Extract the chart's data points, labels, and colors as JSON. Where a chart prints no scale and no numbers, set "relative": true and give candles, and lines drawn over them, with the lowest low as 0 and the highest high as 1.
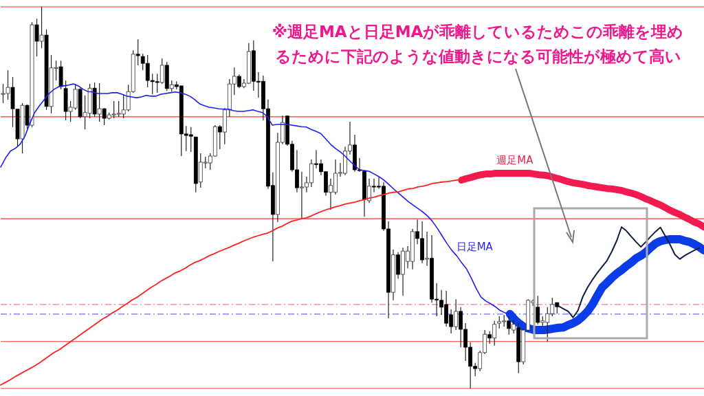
{
  "chart_data": {
    "type": "candlestick",
    "relative": true,
    "tick_labels": false,
    "categories": [
      null,
      null,
      null,
      null,
      null,
      null,
      null,
      null,
      null,
      null,
      null,
      null,
      null,
      null,
      null,
      null,
      null,
      null,
      null,
      null,
      null,
      null,
      null,
      null,
      null,
      null,
      null,
      null,
      null,
      null,
      null,
      null,
      null,
      null,
      null,
      null,
      null,
      null,
      null,
      null,
      null,
      null,
      null,
      null,
      null,
      null,
      null,
      null,
      null,
      null,
      null,
      null,
      null,
      null,
      null,
      null,
      null,
      null,
      null,
      null,
      null,
      null,
      null,
      null,
      null,
      null,
      null,
      null,
      null,
      null,
      null,
      null,
      null,
      null,
      null,
      null,
      null,
      null,
      null,
      null,
      null,
      null,
      null,
      null,
      null,
      null,
      null,
      null,
      null,
      null,
      null,
      null,
      null,
      null,
      null,
      null,
      null,
      null,
      null,
      null,
      null,
      null,
      null,
      null,
      null,
      null,
      null,
      null,
      null,
      null,
      null,
      null,
      null,
      null,
      null,
      null,
      null,
      null,
      null,
      null,
      null,
      null,
      null,
      null,
      null,
      null,
      null,
      null,
      null,
      null,
      null,
      null,
      null,
      null,
      null,
      null,
      null,
      null,
      null,
      null,
      null,
      null,
      null,
      null,
      null,
      null
    ],
    "ohlc": [
      [
        0.771,
        0.798,
        0.748,
        0.773
      ],
      [
        0.773,
        0.834,
        0.757,
        0.789
      ],
      [
        0.789,
        0.816,
        0.685,
        0.733
      ],
      [
        0.732,
        0.732,
        0.636,
        0.654
      ],
      [
        0.654,
        0.748,
        0.616,
        0.742
      ],
      [
        0.742,
        0.744,
        0.681,
        0.69
      ],
      [
        0.69,
        0.96,
        0.685,
        0.953
      ],
      [
        0.953,
        0.969,
        0.87,
        0.91
      ],
      [
        0.91,
        1.0,
        0.892,
        0.926
      ],
      [
        0.926,
        0.941,
        0.73,
        0.739
      ],
      [
        0.739,
        0.874,
        0.721,
        0.84
      ],
      [
        0.84,
        0.859,
        0.807,
        0.841
      ],
      [
        0.843,
        0.859,
        0.784,
        0.791
      ],
      [
        0.786,
        0.807,
        0.703,
        0.726
      ],
      [
        0.726,
        0.753,
        0.699,
        0.737
      ],
      [
        0.735,
        0.798,
        0.73,
        0.784
      ],
      [
        0.784,
        0.787,
        0.708,
        0.712
      ],
      [
        0.712,
        0.768,
        0.679,
        0.723
      ],
      [
        0.721,
        0.798,
        0.708,
        0.787
      ],
      [
        0.787,
        0.802,
        0.712,
        0.719
      ],
      [
        0.719,
        0.8,
        0.699,
        0.733
      ],
      [
        0.733,
        0.735,
        0.69,
        0.708
      ],
      [
        0.708,
        0.723,
        0.705,
        0.717
      ],
      [
        0.717,
        0.753,
        0.708,
        0.719
      ],
      [
        0.719,
        0.753,
        0.712,
        0.721
      ],
      [
        0.719,
        0.771,
        0.708,
        0.73
      ],
      [
        0.73,
        0.796,
        0.726,
        0.778
      ],
      [
        0.778,
        0.886,
        0.775,
        0.876
      ],
      [
        0.876,
        0.915,
        0.847,
        0.872
      ],
      [
        0.87,
        0.877,
        0.834,
        0.852
      ],
      [
        0.852,
        0.874,
        0.789,
        0.807
      ],
      [
        0.807,
        0.825,
        0.771,
        0.804
      ],
      [
        0.804,
        0.825,
        0.775,
        0.802
      ],
      [
        0.802,
        0.865,
        0.798,
        0.847
      ],
      [
        0.847,
        0.856,
        0.78,
        0.786
      ],
      [
        0.786,
        0.807,
        0.778,
        0.796
      ],
      [
        0.796,
        0.805,
        0.784,
        0.791
      ],
      [
        0.793,
        0.793,
        0.609,
        0.667
      ],
      [
        0.667,
        0.688,
        0.622,
        0.663
      ],
      [
        0.665,
        0.685,
        0.62,
        0.661
      ],
      [
        0.659,
        0.659,
        0.514,
        0.537
      ],
      [
        0.541,
        0.616,
        0.526,
        0.593
      ],
      [
        0.591,
        0.607,
        0.577,
        0.593
      ],
      [
        0.591,
        0.616,
        0.573,
        0.609
      ],
      [
        0.609,
        0.69,
        0.607,
        0.686
      ],
      [
        0.686,
        0.69,
        0.627,
        0.672
      ],
      [
        0.672,
        0.735,
        0.64,
        0.73
      ],
      [
        0.73,
        0.811,
        0.712,
        0.798
      ],
      [
        0.798,
        0.841,
        0.769,
        0.818
      ],
      [
        0.818,
        0.823,
        0.787,
        0.791
      ],
      [
        0.791,
        0.811,
        0.787,
        0.8
      ],
      [
        0.8,
        0.905,
        0.798,
        0.883
      ],
      [
        0.885,
        0.912,
        0.78,
        0.805
      ],
      [
        0.805,
        0.829,
        0.762,
        0.804
      ],
      [
        0.805,
        0.82,
        0.703,
        0.733
      ],
      [
        0.733,
        0.757,
        0.523,
        0.53
      ],
      [
        0.532,
        0.566,
        0.333,
        0.456
      ],
      [
        0.456,
        0.67,
        0.436,
        0.645
      ],
      [
        0.645,
        0.715,
        0.64,
        0.697
      ],
      [
        0.714,
        0.715,
        0.636,
        0.64
      ],
      [
        0.64,
        0.649,
        0.568,
        0.573
      ],
      [
        0.573,
        0.625,
        0.514,
        0.526
      ],
      [
        0.526,
        0.568,
        0.447,
        0.528
      ],
      [
        0.528,
        0.555,
        0.514,
        0.539
      ],
      [
        0.539,
        0.6,
        0.528,
        0.589
      ],
      [
        0.589,
        0.625,
        0.577,
        0.587
      ],
      [
        0.589,
        0.6,
        0.559,
        0.568
      ],
      [
        0.568,
        0.568,
        0.505,
        0.514
      ],
      [
        0.514,
        0.55,
        0.468,
        0.532
      ],
      [
        0.514,
        0.6,
        0.508,
        0.564
      ],
      [
        0.564,
        0.591,
        0.555,
        0.566
      ],
      [
        0.564,
        0.634,
        0.559,
        0.622
      ],
      [
        0.622,
        0.699,
        0.613,
        0.638
      ],
      [
        0.638,
        0.665,
        0.568,
        0.573
      ],
      [
        0.573,
        0.604,
        0.568,
        0.571
      ],
      [
        0.569,
        0.569,
        0.45,
        0.495
      ],
      [
        0.492,
        0.55,
        0.486,
        0.53
      ],
      [
        0.53,
        0.55,
        0.514,
        0.528
      ],
      [
        0.53,
        0.553,
        0.523,
        0.528
      ],
      [
        0.53,
        0.541,
        0.413,
        0.418
      ],
      [
        0.418,
        0.438,
        0.184,
        0.252
      ],
      [
        0.252,
        0.364,
        0.231,
        0.35
      ],
      [
        0.35,
        0.357,
        0.288,
        0.299
      ],
      [
        0.299,
        0.369,
        0.243,
        0.36
      ],
      [
        0.333,
        0.373,
        0.315,
        0.36
      ],
      [
        0.333,
        0.418,
        0.312,
        0.411
      ],
      [
        0.411,
        0.443,
        0.378,
        0.393
      ],
      [
        0.393,
        0.438,
        0.328,
        0.337
      ],
      [
        0.339,
        0.411,
        0.321,
        0.341
      ],
      [
        0.341,
        0.402,
        0.225,
        0.234
      ],
      [
        0.234,
        0.276,
        0.189,
        0.232
      ],
      [
        0.231,
        0.258,
        0.193,
        0.213
      ],
      [
        0.22,
        0.256,
        0.162,
        0.171
      ],
      [
        0.193,
        0.207,
        0.144,
        0.162
      ],
      [
        0.162,
        0.234,
        0.153,
        0.202
      ],
      [
        0.202,
        0.213,
        0.108,
        0.155
      ],
      [
        0.155,
        0.171,
        0.072,
        0.108
      ],
      [
        0.108,
        0.121,
        0,
        0.058
      ],
      [
        0.058,
        0.067,
        0.032,
        0.052
      ],
      [
        0.052,
        0.099,
        0.045,
        0.094
      ],
      [
        0.094,
        0.153,
        0.09,
        0.142
      ],
      [
        0.141,
        0.15,
        0.117,
        0.132
      ],
      [
        0.132,
        0.177,
        0.112,
        0.168
      ],
      [
        0.171,
        0.189,
        0.157,
        0.175
      ],
      [
        0.175,
        0.193,
        0.162,
        0.177
      ],
      [
        0.177,
        0.189,
        0.141,
        0.157
      ],
      [
        0.153,
        0.18,
        0.144,
        0.168
      ],
      [
        0.159,
        0.171,
        0.04,
        0.07
      ],
      [
        0.07,
        0.157,
        0.063,
        0.153
      ],
      [
        0.153,
        0.234,
        0.15,
        0.231
      ],
      [
        0.225,
        0.234,
        0.216,
        0.229
      ],
      [
        0.213,
        0.243,
        0.168,
        0.173
      ],
      [
        0.173,
        0.189,
        0.162,
        0.177
      ],
      [
        0.173,
        0.213,
        0.123,
        0.196
      ],
      [
        0.196,
        0.238,
        0.189,
        0.22
      ],
      [
        0.225,
        0.225,
        0.196,
        0.214
      ],
      null,
      null,
      null,
      null,
      null,
      null,
      null,
      null,
      null,
      null,
      null,
      null,
      null,
      null,
      null,
      null,
      null,
      null,
      null,
      null,
      null,
      null,
      null,
      null,
      null,
      null,
      null,
      null,
      null,
      null
    ],
    "series": [
      {
        "type": "line",
        "name": "日足MA",
        "color": "#1e1ef0",
        "values": [
          0.58,
          0.604,
          0.622,
          0.629,
          0.64,
          0.661,
          0.694,
          0.723,
          0.741,
          0.757,
          0.773,
          0.784,
          0.791,
          0.793,
          0.795,
          0.798,
          0.793,
          0.784,
          0.778,
          0.777,
          0.773,
          0.773,
          0.773,
          0.775,
          0.775,
          0.771,
          0.766,
          0.764,
          0.762,
          0.764,
          0.768,
          0.766,
          0.766,
          0.771,
          0.773,
          0.775,
          0.777,
          0.775,
          0.771,
          0.766,
          0.757,
          0.746,
          0.741,
          0.737,
          0.735,
          0.733,
          0.732,
          0.732,
          0.728,
          0.726,
          0.726,
          0.728,
          0.73,
          0.726,
          0.723,
          0.712,
          0.69,
          0.692,
          0.692,
          0.692,
          0.69,
          0.688,
          0.686,
          0.685,
          0.679,
          0.674,
          0.668,
          0.654,
          0.64,
          0.629,
          0.62,
          0.609,
          0.596,
          0.584,
          0.573,
          0.571,
          0.569,
          0.562,
          0.555,
          0.546,
          0.535,
          0.523,
          0.512,
          0.501,
          0.49,
          0.481,
          0.472,
          0.463,
          0.452,
          0.438,
          0.42,
          0.4,
          0.38,
          0.362,
          0.348,
          0.33,
          0.314,
          0.29,
          0.263,
          0.24,
          0.229,
          0.222,
          0.214,
          0.204,
          0.198,
          0.195,
          null,
          null,
          null,
          null,
          null,
          null,
          null,
          null,
          null,
          null,
          null,
          null,
          null,
          null,
          null,
          null,
          null,
          null,
          null,
          null,
          null,
          null,
          null,
          null,
          null,
          null,
          null,
          null,
          null,
          null,
          null,
          null,
          null,
          null,
          null,
          null,
          null,
          null,
          null,
          null
        ]
      },
      {
        "type": "line",
        "color": "#ff2020",
        "values": [
          0.009,
          0.016,
          0.023,
          0.031,
          0.038,
          0.045,
          0.052,
          0.059,
          0.067,
          0.076,
          0.085,
          0.094,
          0.101,
          0.11,
          0.119,
          0.128,
          0.137,
          0.146,
          0.155,
          0.164,
          0.173,
          0.182,
          0.189,
          0.198,
          0.205,
          0.214,
          0.222,
          0.231,
          0.238,
          0.247,
          0.256,
          0.265,
          0.272,
          0.281,
          0.288,
          0.295,
          0.303,
          0.308,
          0.315,
          0.323,
          0.33,
          0.335,
          0.341,
          0.348,
          0.353,
          0.359,
          0.364,
          0.369,
          0.375,
          0.38,
          0.386,
          0.391,
          0.396,
          0.4,
          0.404,
          0.407,
          0.413,
          0.42,
          0.425,
          0.432,
          0.438,
          0.441,
          0.445,
          0.447,
          0.452,
          0.458,
          0.463,
          0.468,
          0.472,
          0.476,
          0.479,
          0.483,
          0.486,
          0.488,
          0.492,
          0.495,
          0.499,
          0.501,
          0.505,
          0.508,
          0.512,
          0.514,
          0.515,
          0.519,
          0.523,
          0.524,
          0.528,
          0.53,
          0.533,
          0.537,
          0.539,
          0.541,
          0.542,
          0.544,
          0.546,
          0.548,
          null,
          null,
          null,
          null,
          null,
          null,
          null,
          null,
          null,
          null,
          null,
          null,
          null,
          null,
          null,
          null,
          null,
          null,
          null,
          null,
          null,
          null,
          null,
          null,
          null,
          null,
          null,
          null,
          null,
          null,
          null,
          null,
          null,
          null,
          null,
          null,
          null,
          null,
          null,
          null,
          null,
          null,
          null,
          null,
          null,
          null,
          null,
          null,
          null,
          null
        ]
      },
      {
        "type": "line",
        "name": "週足MA",
        "color": "#f21a4e",
        "values": [
          null,
          null,
          null,
          null,
          null,
          null,
          null,
          null,
          null,
          null,
          null,
          null,
          null,
          null,
          null,
          null,
          null,
          null,
          null,
          null,
          null,
          null,
          null,
          null,
          null,
          null,
          null,
          null,
          null,
          null,
          null,
          null,
          null,
          null,
          null,
          null,
          null,
          null,
          null,
          null,
          null,
          null,
          null,
          null,
          null,
          null,
          null,
          null,
          null,
          null,
          null,
          null,
          null,
          null,
          null,
          null,
          null,
          null,
          null,
          null,
          null,
          null,
          null,
          null,
          null,
          null,
          null,
          null,
          null,
          null,
          null,
          null,
          null,
          null,
          null,
          null,
          null,
          null,
          null,
          null,
          null,
          null,
          null,
          null,
          null,
          null,
          null,
          null,
          null,
          null,
          null,
          null,
          null,
          null,
          null,
          0.546,
          0.55,
          0.553,
          0.557,
          0.56,
          0.562,
          0.562,
          0.564,
          0.564,
          0.564,
          0.564,
          0.564,
          0.564,
          0.564,
          0.564,
          0.562,
          0.56,
          0.559,
          0.557,
          0.553,
          0.55,
          0.546,
          0.542,
          0.539,
          0.537,
          0.535,
          0.532,
          0.53,
          0.528,
          0.526,
          0.524,
          0.523,
          0.521,
          0.519,
          0.515,
          0.512,
          0.508,
          0.503,
          0.497,
          0.492,
          0.486,
          0.481,
          0.474,
          0.467,
          0.461,
          0.456,
          0.449,
          0.443,
          0.436,
          0.431,
          0.423
        ]
      },
      {
        "type": "line",
        "color": "#0a3ce8",
        "values": [
          null,
          null,
          null,
          null,
          null,
          null,
          null,
          null,
          null,
          null,
          null,
          null,
          null,
          null,
          null,
          null,
          null,
          null,
          null,
          null,
          null,
          null,
          null,
          null,
          null,
          null,
          null,
          null,
          null,
          null,
          null,
          null,
          null,
          null,
          null,
          null,
          null,
          null,
          null,
          null,
          null,
          null,
          null,
          null,
          null,
          null,
          null,
          null,
          null,
          null,
          null,
          null,
          null,
          null,
          null,
          null,
          null,
          null,
          null,
          null,
          null,
          null,
          null,
          null,
          null,
          null,
          null,
          null,
          null,
          null,
          null,
          null,
          null,
          null,
          null,
          null,
          null,
          null,
          null,
          null,
          null,
          null,
          null,
          null,
          null,
          null,
          null,
          null,
          null,
          null,
          null,
          null,
          null,
          null,
          null,
          null,
          null,
          null,
          null,
          null,
          null,
          null,
          null,
          null,
          null,
          0.195,
          0.18,
          0.169,
          0.16,
          0.157,
          0.153,
          0.153,
          0.153,
          0.155,
          0.157,
          0.159,
          0.16,
          0.166,
          0.171,
          0.178,
          0.189,
          0.202,
          0.22,
          0.243,
          0.265,
          0.277,
          0.29,
          0.301,
          0.31,
          0.321,
          0.33,
          0.341,
          0.348,
          0.357,
          0.369,
          0.38,
          0.386,
          0.389,
          0.391,
          0.391,
          0.391,
          0.387,
          0.384,
          0.378,
          0.371,
          0.362
        ]
      },
      {
        "type": "line",
        "color": "#0f1c44",
        "values": [
          null,
          null,
          null,
          null,
          null,
          null,
          null,
          null,
          null,
          null,
          null,
          null,
          null,
          null,
          null,
          null,
          null,
          null,
          null,
          null,
          null,
          null,
          null,
          null,
          null,
          null,
          null,
          null,
          null,
          null,
          null,
          null,
          null,
          null,
          null,
          null,
          null,
          null,
          null,
          null,
          null,
          null,
          null,
          null,
          null,
          null,
          null,
          null,
          null,
          null,
          null,
          null,
          null,
          null,
          null,
          null,
          null,
          null,
          null,
          null,
          null,
          null,
          null,
          null,
          null,
          null,
          null,
          null,
          null,
          null,
          null,
          null,
          null,
          null,
          null,
          null,
          null,
          null,
          null,
          null,
          null,
          null,
          null,
          null,
          null,
          null,
          null,
          null,
          null,
          null,
          null,
          null,
          null,
          null,
          null,
          null,
          null,
          null,
          null,
          null,
          null,
          null,
          null,
          null,
          null,
          null,
          null,
          null,
          null,
          null,
          null,
          null,
          null,
          null,
          null,
          0.216,
          0.209,
          0.202,
          0.186,
          0.204,
          0.24,
          0.265,
          0.285,
          0.303,
          0.319,
          0.335,
          0.359,
          0.387,
          0.423,
          0.413,
          0.398,
          0.384,
          0.371,
          0.384,
          0.398,
          0.411,
          0.422,
          0.4,
          0.377,
          0.351,
          0.339,
          0.348,
          0.355,
          0.362,
          0.368,
          null
        ]
      }
    ],
    "ref_lines": [
      {
        "axis": "y",
        "value": 1.0,
        "color": "#ff3030",
        "line_style": "solid"
      },
      {
        "axis": "y",
        "value": 0.712,
        "color": "#ff3030",
        "line_style": "solid"
      },
      {
        "axis": "y",
        "value": 0.445,
        "color": "#ff3030",
        "line_style": "solid"
      },
      {
        "axis": "y",
        "value": 0.123,
        "color": "#ff3030",
        "line_style": "solid"
      },
      {
        "axis": "y",
        "value": 0,
        "color": "#ff3030",
        "line_style": "solid"
      },
      {
        "axis": "y",
        "value": 0.22,
        "color": "#ff6fb0",
        "line_style": "dashed"
      },
      {
        "axis": "y",
        "value": 0.195,
        "color": "#6b6bff",
        "line_style": "dashed"
      }
    ],
    "annotations": [
      "※週足MAと日足MAが乖離しているためこの乖離を埋めるために下記のような値動きになる可能性が極めて高い"
    ]
  }
}
